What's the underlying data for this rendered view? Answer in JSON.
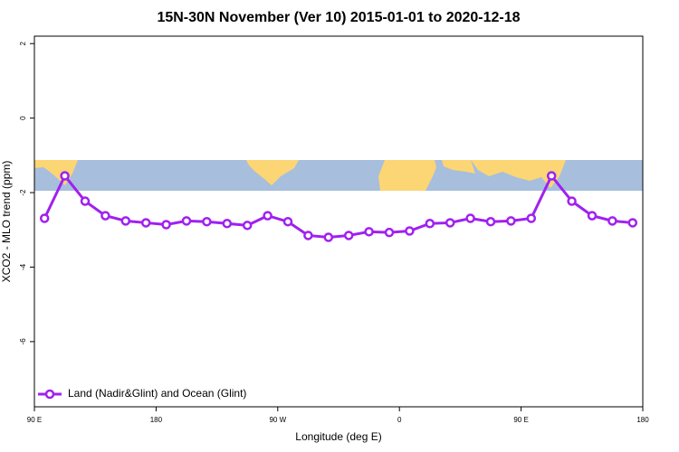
{
  "chart_data": {
    "type": "line",
    "title": "15N-30N November (Ver 10)   2015-01-01 to 2020-12-18",
    "x_label": "Longitude (deg E)",
    "y_label": "XCO2 - MLO trend (ppm)",
    "x": [
      97.5,
      112.5,
      127.5,
      142.5,
      157.5,
      172.5,
      187.5,
      202.5,
      217.5,
      232.5,
      247.5,
      262.5,
      277.5,
      292.5,
      307.5,
      322.5,
      337.5,
      352.5,
      367.5,
      382.5,
      397.5,
      412.5,
      427.5,
      442.5,
      457.5,
      472.5,
      487.5,
      502.5,
      517.5,
      532.5
    ],
    "series": [
      {
        "name": "Land (Nadir&Glint) and Ocean (Glint)",
        "color": "#a020f0",
        "values": [
          -2.69,
          -1.55,
          -2.23,
          -2.62,
          -2.76,
          -2.81,
          -2.86,
          -2.76,
          -2.78,
          -2.83,
          -2.88,
          -2.62,
          -2.78,
          -3.15,
          -3.2,
          -3.15,
          -3.05,
          -3.07,
          -3.03,
          -2.83,
          -2.81,
          -2.69,
          -2.78,
          -2.76,
          -2.69,
          -1.55,
          -2.23,
          -2.62,
          -2.76,
          -2.81
        ]
      }
    ],
    "xlim": [
      90,
      540
    ],
    "xticks": [
      {
        "value": 90,
        "label": "90 E"
      },
      180,
      {
        "value": 270,
        "label": "90 W"
      },
      {
        "value": 360,
        "label": "0"
      },
      {
        "value": 450,
        "label": "90 E"
      },
      {
        "value": 540,
        "label": "180"
      }
    ],
    "ylim": [
      -7.75,
      2.2
    ],
    "yticks": [
      2,
      0,
      -2,
      -4,
      -6
    ],
    "legend": "bottomleft"
  }
}
